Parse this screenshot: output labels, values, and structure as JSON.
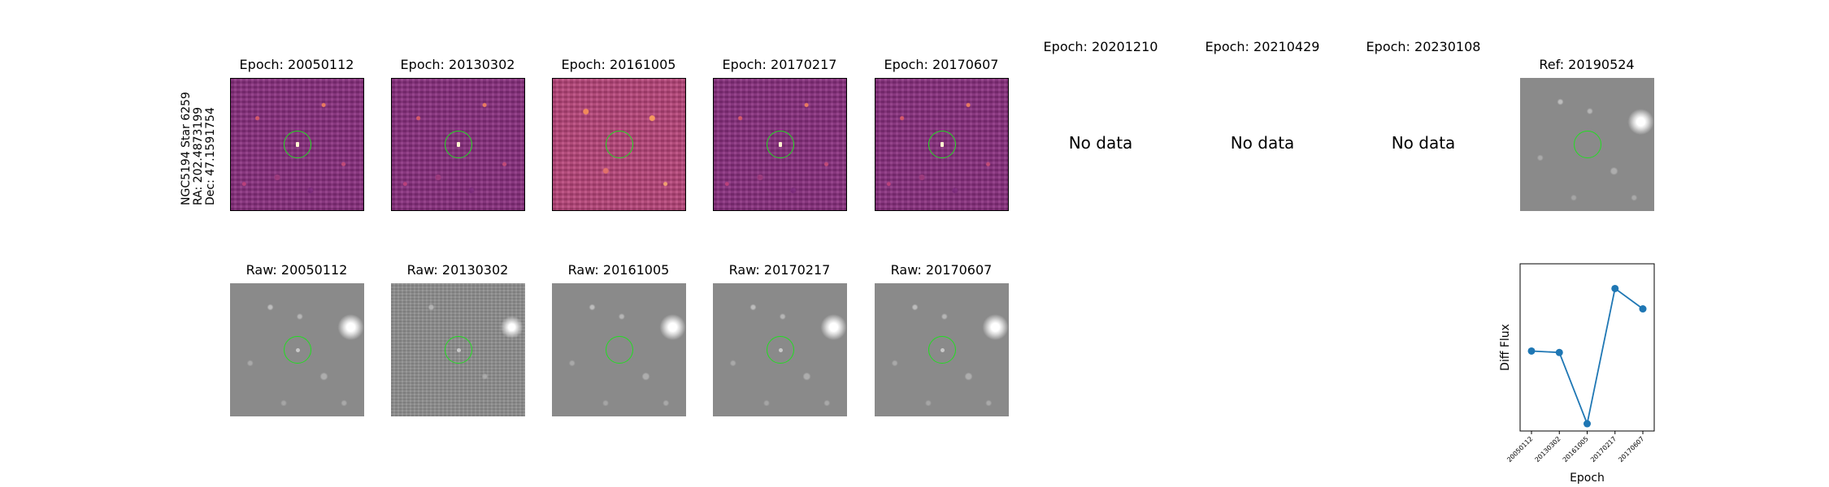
{
  "star_info": {
    "line1": "NGC5194 Star 6259",
    "line2": "RA: 202.4873199",
    "line3": "Dec: 47.1591754"
  },
  "diff_titles": [
    "Epoch: 20050112",
    "Epoch: 20130302",
    "Epoch: 20161005",
    "Epoch: 20170217",
    "Epoch: 20170607"
  ],
  "missing_titles": [
    "Epoch: 20201210",
    "Epoch: 20210429",
    "Epoch: 20230108"
  ],
  "no_data_label": "No data",
  "ref_title": "Ref: 20190524",
  "raw_titles": [
    "Raw: 20050112",
    "Raw: 20130302",
    "Raw: 20161005",
    "Raw: 20170217",
    "Raw: 20170607"
  ],
  "colors": {
    "marker_ring": "#22dd22",
    "line": "#1f77b4"
  },
  "chart_data": {
    "type": "line",
    "categories": [
      "20050112",
      "20130302",
      "20161005",
      "20170217",
      "20170607"
    ],
    "values": [
      0.58,
      0.56,
      -0.42,
      1.44,
      1.16
    ],
    "xlabel": "Epoch",
    "ylabel": "Diff Flux",
    "ylim": [
      -0.52,
      1.78
    ],
    "yticks_visible": false
  }
}
